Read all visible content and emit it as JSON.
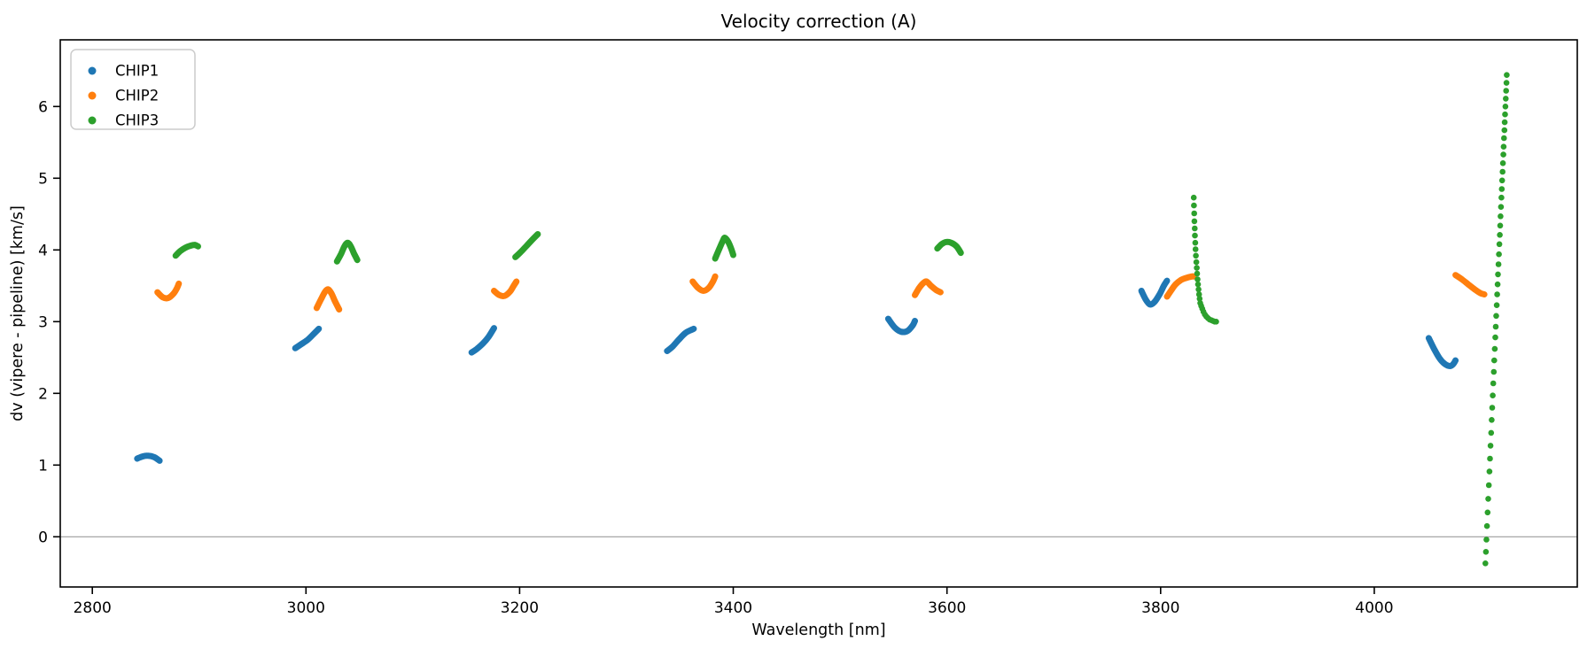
{
  "figure": {
    "title": "Velocity correction (A)"
  },
  "colors": {
    "chip1": "#1f77b4",
    "chip2": "#ff7f0e",
    "chip3": "#2ca02c",
    "axis": "#000000",
    "zero_line": "#9c9c9c",
    "legend_border": "#cccccc",
    "background": "#ffffff"
  },
  "chart_data": {
    "type": "scatter",
    "title": "Velocity correction (A)",
    "xlabel": "Wavelength [nm]",
    "ylabel": "dv (vipere - pipeline) [km/s]",
    "xlim": [
      2770,
      4190
    ],
    "ylim": [
      -0.7,
      6.93
    ],
    "xticks": [
      2800,
      3000,
      3200,
      3400,
      3600,
      3800,
      4000
    ],
    "yticks": [
      0,
      1,
      2,
      3,
      4,
      5,
      6
    ],
    "grid": false,
    "hline_y": 0,
    "legend": {
      "position": "upper left",
      "entries": [
        {
          "label": "CHIP1",
          "color": "#1f77b4"
        },
        {
          "label": "CHIP2",
          "color": "#ff7f0e"
        },
        {
          "label": "CHIP3",
          "color": "#2ca02c"
        }
      ]
    },
    "series": [
      {
        "name": "CHIP1",
        "color": "#1f77b4",
        "stroke_px": 7,
        "segments": [
          [
            [
              2842,
              1.09
            ],
            [
              2847,
              1.12
            ],
            [
              2852,
              1.13
            ],
            [
              2858,
              1.11
            ],
            [
              2863,
              1.06
            ]
          ],
          [
            [
              2990,
              2.63
            ],
            [
              2995,
              2.68
            ],
            [
              3001,
              2.74
            ],
            [
              3006,
              2.81
            ],
            [
              3012,
              2.9
            ]
          ],
          [
            [
              3155,
              2.57
            ],
            [
              3160,
              2.62
            ],
            [
              3166,
              2.7
            ],
            [
              3171,
              2.79
            ],
            [
              3176,
              2.91
            ]
          ],
          [
            [
              3338,
              2.59
            ],
            [
              3343,
              2.65
            ],
            [
              3349,
              2.75
            ],
            [
              3355,
              2.84
            ],
            [
              3360,
              2.88
            ],
            [
              3363,
              2.9
            ]
          ],
          [
            [
              3545,
              3.04
            ],
            [
              3551,
              2.92
            ],
            [
              3557,
              2.86
            ],
            [
              3563,
              2.87
            ],
            [
              3568,
              2.95
            ],
            [
              3570,
              3.01
            ]
          ],
          [
            [
              3782,
              3.43
            ],
            [
              3786,
              3.31
            ],
            [
              3790,
              3.24
            ],
            [
              3794,
              3.27
            ],
            [
              3799,
              3.38
            ],
            [
              3803,
              3.5
            ],
            [
              3806,
              3.57
            ]
          ],
          [
            [
              4051,
              2.77
            ],
            [
              4056,
              2.62
            ],
            [
              4061,
              2.49
            ],
            [
              4066,
              2.41
            ],
            [
              4071,
              2.38
            ],
            [
              4074,
              2.41
            ],
            [
              4076,
              2.46
            ]
          ]
        ]
      },
      {
        "name": "CHIP2",
        "color": "#ff7f0e",
        "stroke_px": 7,
        "segments": [
          [
            [
              2861,
              3.41
            ],
            [
              2866,
              3.34
            ],
            [
              2871,
              3.33
            ],
            [
              2876,
              3.39
            ],
            [
              2879,
              3.46
            ],
            [
              2881,
              3.53
            ]
          ],
          [
            [
              3010,
              3.19
            ],
            [
              3014,
              3.31
            ],
            [
              3018,
              3.42
            ],
            [
              3021,
              3.45
            ],
            [
              3024,
              3.39
            ],
            [
              3027,
              3.29
            ],
            [
              3031,
              3.17
            ]
          ],
          [
            [
              3176,
              3.43
            ],
            [
              3181,
              3.37
            ],
            [
              3186,
              3.36
            ],
            [
              3191,
              3.42
            ],
            [
              3194,
              3.49
            ],
            [
              3197,
              3.56
            ]
          ],
          [
            [
              3362,
              3.56
            ],
            [
              3367,
              3.47
            ],
            [
              3372,
              3.43
            ],
            [
              3377,
              3.47
            ],
            [
              3381,
              3.56
            ],
            [
              3383,
              3.63
            ]
          ],
          [
            [
              3570,
              3.37
            ],
            [
              3574,
              3.47
            ],
            [
              3578,
              3.54
            ],
            [
              3581,
              3.56
            ],
            [
              3585,
              3.5
            ],
            [
              3590,
              3.44
            ],
            [
              3594,
              3.41
            ]
          ],
          [
            [
              3806,
              3.35
            ],
            [
              3810,
              3.44
            ],
            [
              3814,
              3.52
            ],
            [
              3819,
              3.58
            ],
            [
              3824,
              3.61
            ],
            [
              3829,
              3.63
            ],
            [
              3831,
              3.63
            ]
          ],
          [
            [
              4076,
              3.65
            ],
            [
              4082,
              3.59
            ],
            [
              4088,
              3.52
            ],
            [
              4094,
              3.45
            ],
            [
              4099,
              3.4
            ],
            [
              4103,
              3.38
            ]
          ]
        ]
      },
      {
        "name": "CHIP3",
        "color": "#2ca02c",
        "stroke_px": 7,
        "dot_radius_px": 3.3,
        "segments": [
          [
            [
              2878,
              3.92
            ],
            [
              2882,
              3.98
            ],
            [
              2887,
              4.03
            ],
            [
              2892,
              4.06
            ],
            [
              2896,
              4.07
            ],
            [
              2899,
              4.05
            ]
          ],
          [
            [
              3029,
              3.84
            ],
            [
              3033,
              3.95
            ],
            [
              3036,
              4.05
            ],
            [
              3039,
              4.1
            ],
            [
              3042,
              4.05
            ],
            [
              3045,
              3.95
            ],
            [
              3048,
              3.86
            ]
          ],
          [
            [
              3196,
              3.9
            ],
            [
              3201,
              3.97
            ],
            [
              3206,
              4.05
            ],
            [
              3211,
              4.13
            ],
            [
              3215,
              4.19
            ],
            [
              3217,
              4.22
            ]
          ],
          [
            [
              3383,
              3.88
            ],
            [
              3387,
              4.02
            ],
            [
              3390,
              4.12
            ],
            [
              3392,
              4.17
            ],
            [
              3395,
              4.12
            ],
            [
              3398,
              4.02
            ],
            [
              3400,
              3.93
            ]
          ],
          [
            [
              3591,
              4.02
            ],
            [
              3595,
              4.08
            ],
            [
              3599,
              4.11
            ],
            [
              3604,
              4.1
            ],
            [
              3609,
              4.05
            ],
            [
              3613,
              3.96
            ]
          ]
        ],
        "dot_columns": [
          [
            [
              3831.0,
              4.73
            ],
            [
              3831.2,
              4.62
            ],
            [
              3831.4,
              4.51
            ],
            [
              3831.6,
              4.4
            ],
            [
              3831.9,
              4.3
            ],
            [
              3832.1,
              4.2
            ],
            [
              3832.4,
              4.1
            ],
            [
              3832.7,
              4.01
            ],
            [
              3833.0,
              3.92
            ],
            [
              3833.4,
              3.83
            ],
            [
              3833.8,
              3.75
            ],
            [
              3834.2,
              3.67
            ],
            [
              3834.6,
              3.59
            ],
            [
              3835.0,
              3.52
            ],
            [
              3835.5,
              3.45
            ],
            [
              3836.0,
              3.38
            ],
            [
              3836.5,
              3.32
            ],
            [
              3837.1,
              3.26
            ],
            [
              3838.0,
              3.22
            ],
            [
              3839.0,
              3.18
            ],
            [
              3840.1,
              3.14
            ],
            [
              3841.4,
              3.1
            ],
            [
              3842.8,
              3.07
            ],
            [
              3844.3,
              3.05
            ],
            [
              3845.9,
              3.03
            ],
            [
              3847.5,
              3.02
            ],
            [
              3849.1,
              3.01
            ],
            [
              3850.6,
              3.0
            ],
            [
              3852.0,
              3.0
            ]
          ],
          [
            [
              4124.0,
              6.44
            ],
            [
              4123.7,
              6.33
            ],
            [
              4123.4,
              6.22
            ],
            [
              4123.1,
              6.11
            ],
            [
              4122.7,
              6.0
            ],
            [
              4122.4,
              5.89
            ],
            [
              4122.1,
              5.78
            ],
            [
              4121.8,
              5.67
            ],
            [
              4121.4,
              5.56
            ],
            [
              4121.1,
              5.44
            ],
            [
              4120.8,
              5.33
            ],
            [
              4120.4,
              5.21
            ],
            [
              4120.1,
              5.09
            ],
            [
              4119.7,
              4.97
            ],
            [
              4119.3,
              4.85
            ],
            [
              4119.0,
              4.73
            ],
            [
              4118.6,
              4.6
            ],
            [
              4118.2,
              4.47
            ],
            [
              4117.8,
              4.34
            ],
            [
              4117.5,
              4.21
            ],
            [
              4117.1,
              4.08
            ],
            [
              4116.7,
              3.94
            ],
            [
              4116.3,
              3.8
            ],
            [
              4115.8,
              3.66
            ],
            [
              4115.4,
              3.52
            ],
            [
              4115.0,
              3.38
            ],
            [
              4114.6,
              3.23
            ],
            [
              4114.1,
              3.08
            ],
            [
              4113.7,
              2.93
            ],
            [
              4113.3,
              2.78
            ],
            [
              4112.8,
              2.62
            ],
            [
              4112.3,
              2.46
            ],
            [
              4111.9,
              2.3
            ],
            [
              4111.4,
              2.14
            ],
            [
              4110.9,
              1.97
            ],
            [
              4110.4,
              1.8
            ],
            [
              4109.9,
              1.63
            ],
            [
              4109.4,
              1.45
            ],
            [
              4108.8,
              1.27
            ],
            [
              4108.3,
              1.09
            ],
            [
              4107.8,
              0.91
            ],
            [
              4107.2,
              0.72
            ],
            [
              4106.6,
              0.53
            ],
            [
              4106.1,
              0.34
            ],
            [
              4105.5,
              0.15
            ],
            [
              4105.0,
              -0.04
            ],
            [
              4104.5,
              -0.21
            ],
            [
              4104.0,
              -0.37
            ]
          ]
        ]
      }
    ]
  }
}
